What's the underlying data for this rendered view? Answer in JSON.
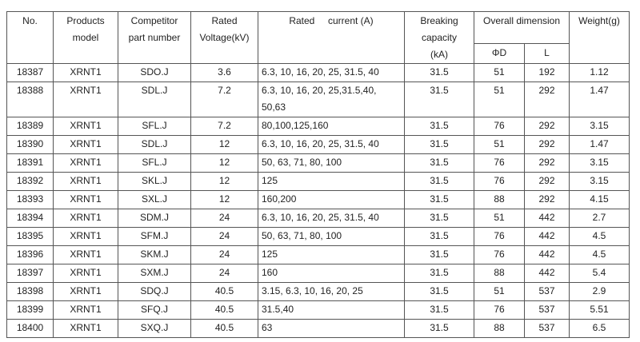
{
  "headers": {
    "no": "No.",
    "model": "Products\nmodel",
    "competitor": "Competitor\npart number",
    "voltage": "Rated\nVoltage(kV)",
    "current": "Rated     current (A)",
    "breaking": "Breaking\ncapacity\n(kA)",
    "dimension": "Overall dimension",
    "phi_d": "ΦD",
    "l": "L",
    "weight": "Weight(g)"
  },
  "rows": [
    {
      "no": "18387",
      "model": "XRNT1",
      "part": "SDO.J",
      "voltage": "3.6",
      "current": "6.3, 10, 16, 20, 25, 31.5, 40",
      "breaking": "31.5",
      "d": "51",
      "l": "192",
      "weight": "1.12"
    },
    {
      "no": "18388",
      "model": "XRNT1",
      "part": "SDL.J",
      "voltage": "7.2",
      "current": "6.3, 10, 16, 20, 25,31.5,40,\n50,63",
      "breaking": "31.5",
      "d": "51",
      "l": "292",
      "weight": "1.47"
    },
    {
      "no": "18389",
      "model": "XRNT1",
      "part": "SFL.J",
      "voltage": "7.2",
      "current": "80,100,125,160",
      "breaking": "31.5",
      "d": "76",
      "l": "292",
      "weight": "3.15"
    },
    {
      "no": "18390",
      "model": "XRNT1",
      "part": "SDL.J",
      "voltage": "12",
      "current": "6.3, 10, 16, 20, 25, 31.5, 40",
      "breaking": "31.5",
      "d": "51",
      "l": "292",
      "weight": "1.47"
    },
    {
      "no": "18391",
      "model": "XRNT1",
      "part": "SFL.J",
      "voltage": "12",
      "current": "50, 63, 71, 80, 100",
      "breaking": "31.5",
      "d": "76",
      "l": "292",
      "weight": "3.15"
    },
    {
      "no": "18392",
      "model": "XRNT1",
      "part": "SKL.J",
      "voltage": "12",
      "current": "125",
      "breaking": "31.5",
      "d": "76",
      "l": "292",
      "weight": "3.15"
    },
    {
      "no": "18393",
      "model": "XRNT1",
      "part": "SXL.J",
      "voltage": "12",
      "current": "160,200",
      "breaking": "31.5",
      "d": "88",
      "l": "292",
      "weight": "4.15"
    },
    {
      "no": "18394",
      "model": "XRNT1",
      "part": "SDM.J",
      "voltage": "24",
      "current": "6.3, 10, 16, 20, 25, 31.5, 40",
      "breaking": "31.5",
      "d": "51",
      "l": "442",
      "weight": "2.7"
    },
    {
      "no": "18395",
      "model": "XRNT1",
      "part": "SFM.J",
      "voltage": "24",
      "current": "50, 63, 71, 80, 100",
      "breaking": "31.5",
      "d": "76",
      "l": "442",
      "weight": "4.5"
    },
    {
      "no": "18396",
      "model": "XRNT1",
      "part": "SKM.J",
      "voltage": "24",
      "current": "125",
      "breaking": "31.5",
      "d": "76",
      "l": "442",
      "weight": "4.5"
    },
    {
      "no": "18397",
      "model": "XRNT1",
      "part": "SXM.J",
      "voltage": "24",
      "current": "160",
      "breaking": "31.5",
      "d": "88",
      "l": "442",
      "weight": "5.4"
    },
    {
      "no": "18398",
      "model": "XRNT1",
      "part": "SDQ.J",
      "voltage": "40.5",
      "current": "3.15, 6.3, 10, 16, 20, 25",
      "breaking": "31.5",
      "d": "51",
      "l": "537",
      "weight": "2.9"
    },
    {
      "no": "18399",
      "model": "XRNT1",
      "part": "SFQ.J",
      "voltage": "40.5",
      "current": "31.5,40",
      "breaking": "31.5",
      "d": "76",
      "l": "537",
      "weight": "5.51"
    },
    {
      "no": "18400",
      "model": "XRNT1",
      "part": "SXQ.J",
      "voltage": "40.5",
      "current": "63",
      "breaking": "31.5",
      "d": "88",
      "l": "537",
      "weight": "6.5"
    }
  ]
}
